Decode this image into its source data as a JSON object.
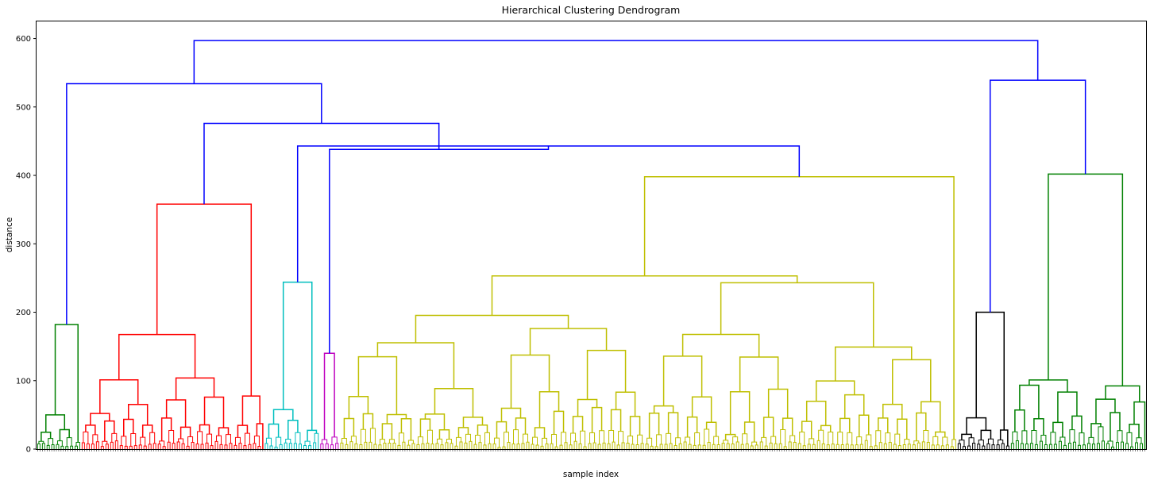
{
  "chart_data": {
    "type": "dendrogram",
    "title": "Hierarchical Clustering Dendrogram",
    "xlabel": "sample index",
    "ylabel": "distance",
    "ylim": [
      0,
      625
    ],
    "yticks": [
      0,
      100,
      200,
      300,
      400,
      500,
      600
    ],
    "grid": false,
    "colors": {
      "above_threshold": "#0000ff",
      "green": "#008000",
      "red": "#ff0000",
      "cyan": "#00bfbf",
      "magenta": "#bf00bf",
      "yellow": "#bfbf00",
      "black": "#000000"
    },
    "clusters": [
      {
        "color": "green",
        "leaf_share": 0.04,
        "height": 182
      },
      {
        "color": "red",
        "leaf_share": 0.165,
        "height": 358
      },
      {
        "color": "cyan",
        "leaf_share": 0.05,
        "height": 244
      },
      {
        "color": "magenta",
        "leaf_share": 0.018,
        "height": 140
      },
      {
        "color": "yellow",
        "leaf_share": 0.5565,
        "height": 398
      },
      {
        "color": "black",
        "leaf_share": 0.048,
        "height": 200
      },
      {
        "color": "green",
        "leaf_share": 0.1225,
        "height": 402
      }
    ],
    "merges": [
      {
        "left": 2,
        "right": 4,
        "height": 443
      },
      {
        "left": "merge0",
        "right": 3,
        "height": 438
      },
      {
        "left": "merge1",
        "right": 1,
        "height": 476
      },
      {
        "left": 0,
        "right": "merge2",
        "height": 534
      },
      {
        "left": 5,
        "right": 6,
        "height": 539
      },
      {
        "left": "merge3",
        "right": "merge4",
        "height": 597
      }
    ]
  }
}
